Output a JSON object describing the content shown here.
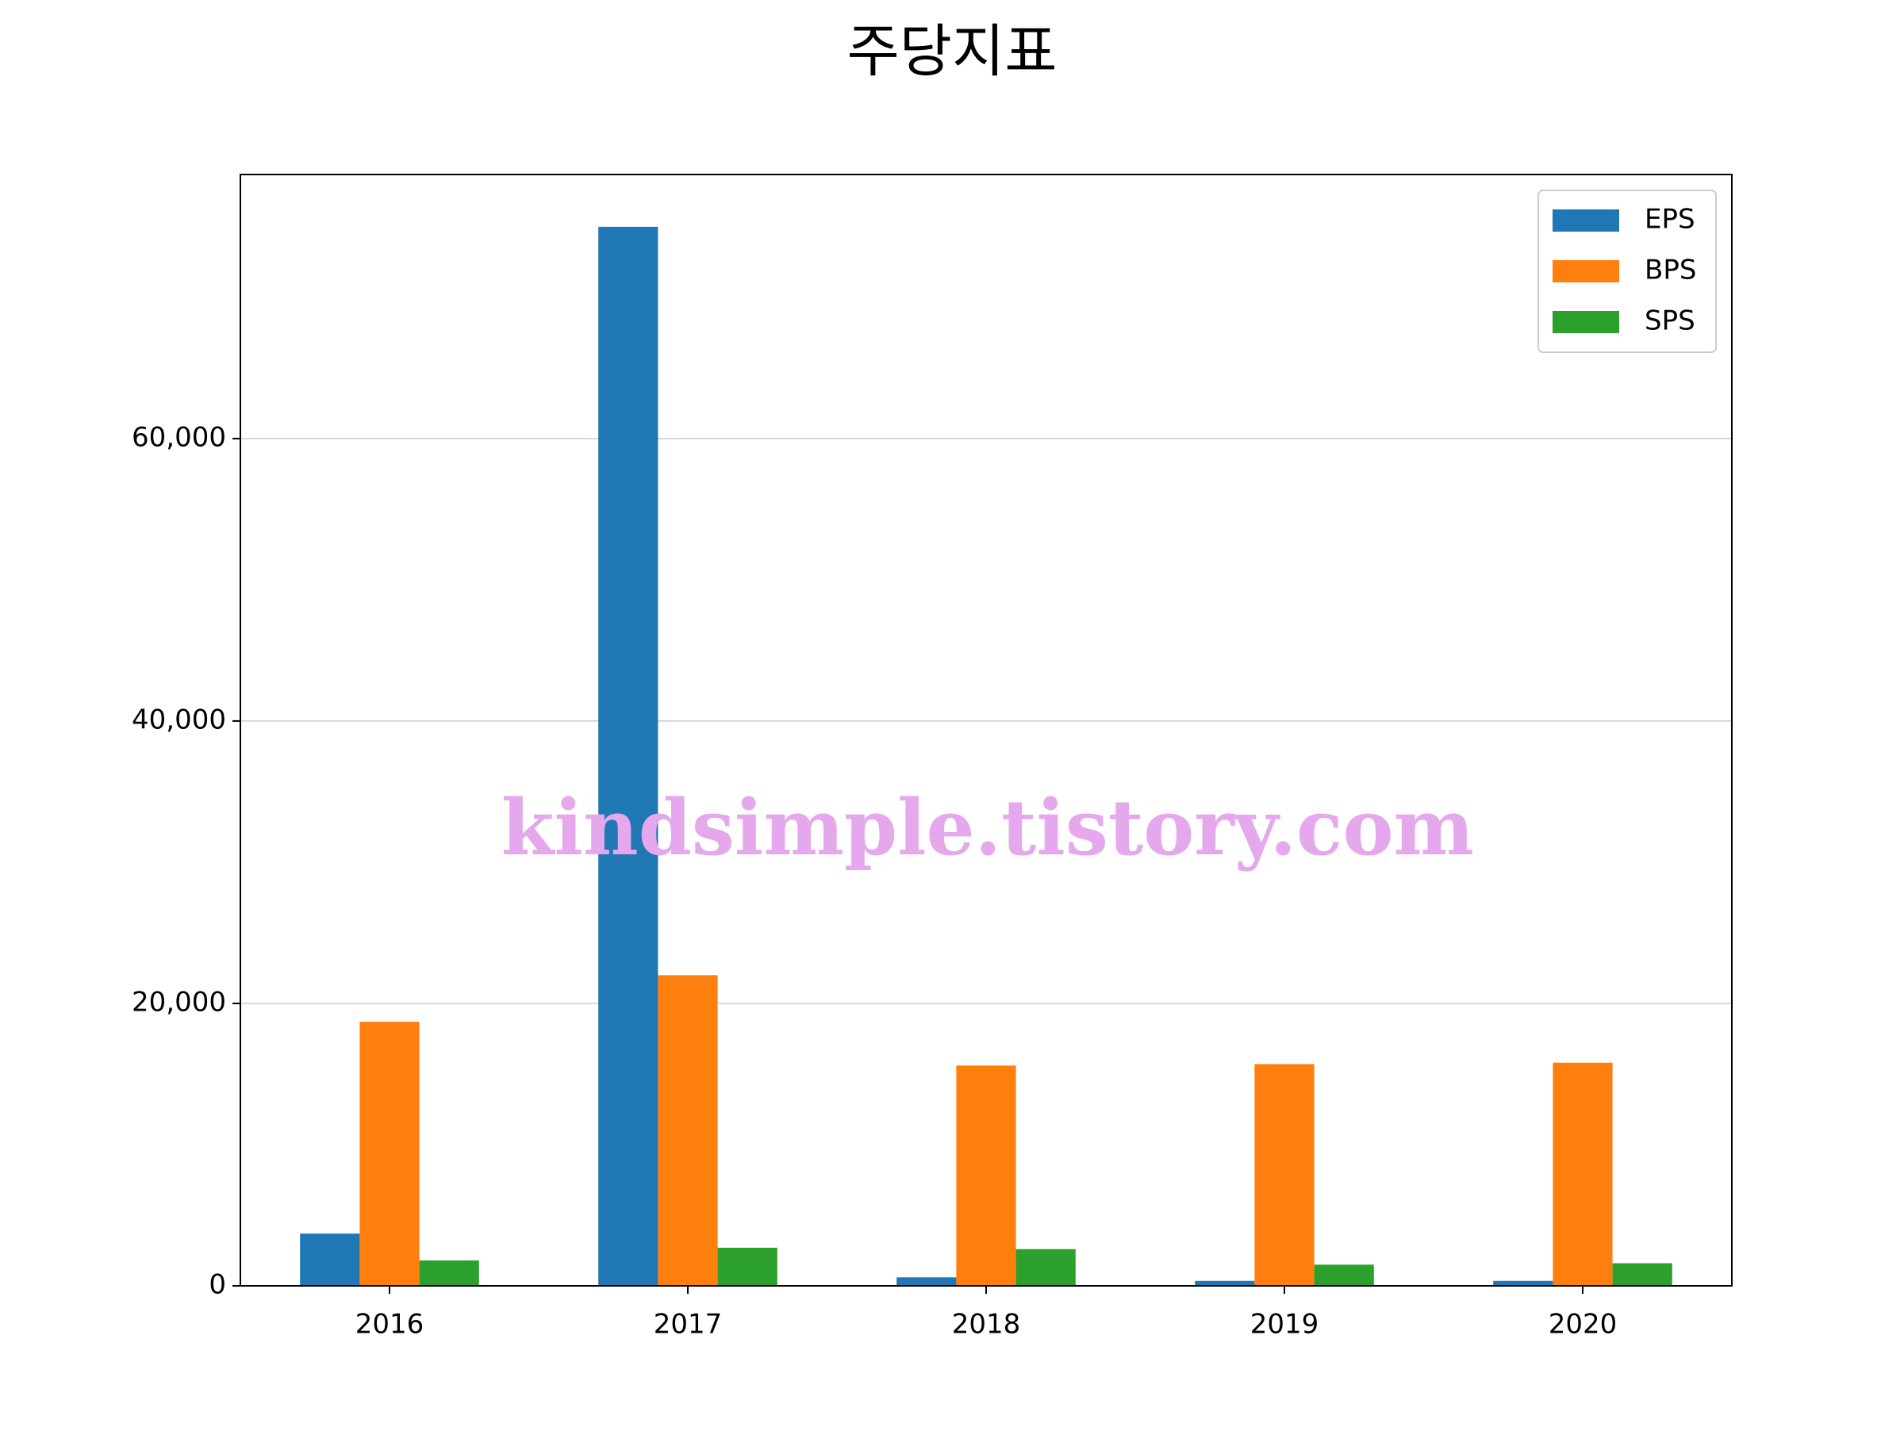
{
  "chart_data": {
    "type": "bar",
    "title": "주당지표",
    "categories": [
      "2016",
      "2017",
      "2018",
      "2019",
      "2020"
    ],
    "series": [
      {
        "name": "EPS",
        "color": "#1f77b4",
        "values": [
          3700,
          75000,
          600,
          350,
          350
        ]
      },
      {
        "name": "BPS",
        "color": "#ff7f0e",
        "values": [
          18700,
          22000,
          15600,
          15700,
          15800
        ]
      },
      {
        "name": "SPS",
        "color": "#2ca02c",
        "values": [
          1800,
          2700,
          2600,
          1500,
          1600
        ]
      }
    ],
    "ylim": [
      0,
      78700
    ],
    "yticks": [
      0,
      {
        "value": 20000,
        "label": "20,000"
      },
      {
        "value": 40000,
        "label": "40,000"
      },
      {
        "value": 60000,
        "label": "60,000"
      }
    ],
    "grid": true,
    "legend": "upper right",
    "watermark": "kindsimple.tistory.com"
  }
}
